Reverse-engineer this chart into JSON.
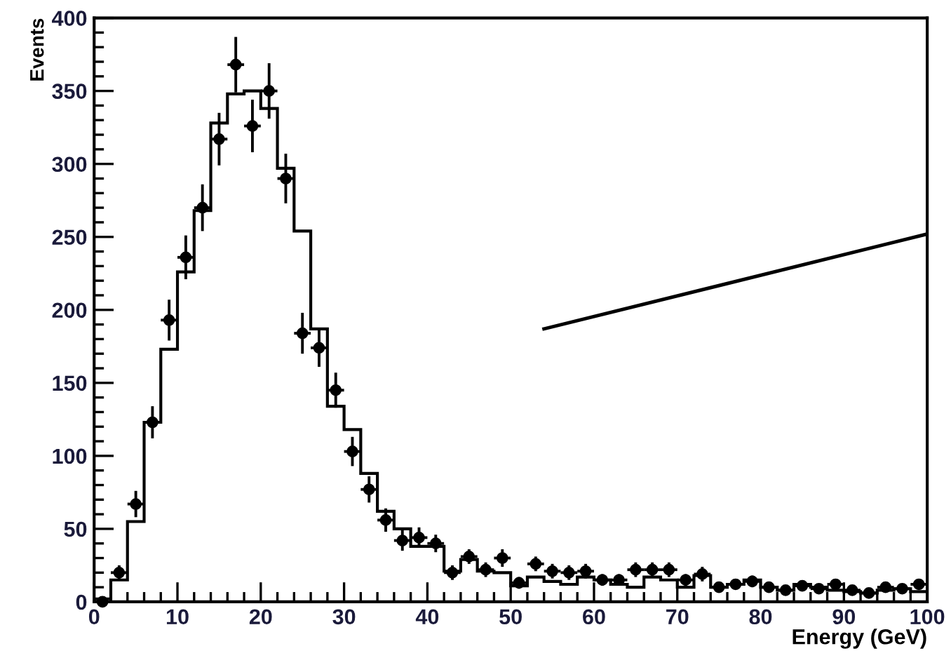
{
  "chart_data": {
    "type": "histogram",
    "xlabel": "Energy (GeV)",
    "ylabel": "Events",
    "bins": [
      0,
      2,
      4,
      6,
      8,
      10,
      12,
      14,
      16,
      18,
      20,
      22,
      24,
      26,
      28,
      30,
      32,
      34,
      36,
      38,
      40,
      42,
      44,
      46,
      48,
      50,
      52,
      54,
      56,
      58,
      60,
      62,
      64,
      66,
      68,
      70,
      72,
      74,
      76,
      78,
      80,
      82,
      84,
      86,
      88,
      90,
      92,
      94,
      96,
      98,
      100
    ],
    "series": [
      {
        "color": "#000000",
        "values": [
          2,
          15,
          55,
          123,
          173,
          226,
          268,
          328,
          348,
          350,
          338,
          297,
          254,
          187,
          134,
          118,
          88,
          62,
          50,
          38,
          38,
          21,
          29,
          21,
          20,
          11,
          17,
          14,
          12,
          17,
          15,
          12,
          10,
          17,
          15,
          10,
          18,
          10,
          12,
          15,
          10,
          8,
          12,
          10,
          8,
          7,
          6,
          8,
          9,
          7
        ]
      },
      {
        "type": "scatter",
        "color": "#000000",
        "marker": "circle",
        "x": [
          1,
          3,
          5,
          7,
          9,
          11,
          13,
          15,
          17,
          19,
          21,
          23,
          25,
          27,
          29,
          31,
          33,
          35,
          37,
          39,
          41,
          43,
          45,
          47,
          49,
          51,
          53,
          55,
          57,
          59,
          61,
          63,
          65,
          67,
          69,
          71,
          73,
          75,
          77,
          79,
          81,
          83,
          85,
          87,
          89,
          91,
          93,
          95,
          97,
          99
        ],
        "values": [
          0,
          20,
          67,
          123,
          193,
          236,
          270,
          317,
          368,
          326,
          350,
          290,
          184,
          174,
          145,
          103,
          77,
          56,
          42,
          44,
          40,
          20,
          31,
          22,
          30,
          13,
          26,
          21,
          20,
          21,
          15,
          15,
          22,
          22,
          22,
          15,
          19,
          10,
          12,
          14,
          10,
          8,
          11,
          9,
          12,
          8,
          6,
          10,
          9,
          12
        ],
        "errors": [
          2,
          5,
          9,
          11,
          14,
          15,
          16,
          18,
          19,
          18,
          19,
          17,
          14,
          13,
          12,
          10,
          9,
          8,
          7,
          7,
          6,
          5,
          5,
          5,
          6,
          4,
          5,
          5,
          5,
          5,
          4,
          4,
          5,
          5,
          5,
          4,
          5,
          3,
          3,
          4,
          3,
          3,
          3,
          3,
          3,
          3,
          2,
          3,
          3,
          3
        ],
        "xerrors": [
          null,
          1,
          1,
          1,
          1,
          1,
          1,
          1,
          1,
          1,
          1,
          1,
          1,
          1,
          1,
          1,
          1,
          1,
          1,
          1,
          1,
          1,
          1,
          1,
          1,
          1,
          1,
          1,
          1,
          1,
          1,
          1,
          1,
          1,
          1,
          1,
          1,
          1,
          1,
          1,
          1,
          1,
          1,
          1,
          1,
          1,
          1,
          1,
          1,
          1
        ]
      },
      {
        "type": "line",
        "color": "#000000",
        "x": [
          54,
          100
        ],
        "values": [
          187,
          252
        ]
      }
    ],
    "xlim": [
      0,
      100
    ],
    "xticks": [
      0,
      10,
      20,
      30,
      40,
      50,
      60,
      70,
      80,
      90,
      100
    ],
    "ylim": [
      0,
      400
    ],
    "yticks": [
      0,
      50,
      100,
      150,
      200,
      250,
      300,
      350,
      400
    ],
    "grid": false
  }
}
